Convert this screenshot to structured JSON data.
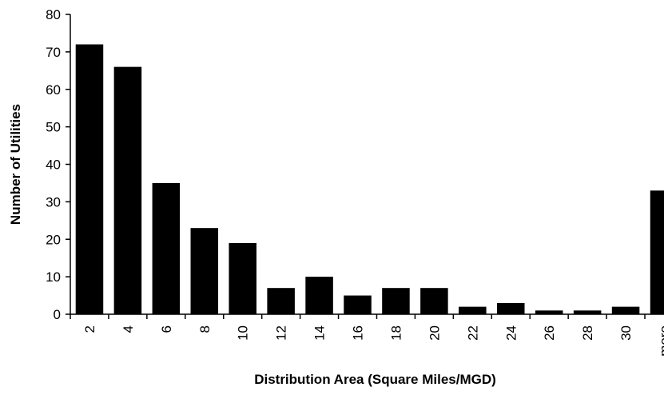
{
  "chart_data": {
    "type": "bar",
    "title": "",
    "xlabel": "Distribution Area (Square Miles/MGD)",
    "ylabel": "Number of Utilities",
    "categories": [
      "2",
      "4",
      "6",
      "8",
      "10",
      "12",
      "14",
      "16",
      "18",
      "20",
      "22",
      "24",
      "26",
      "28",
      "30",
      "more"
    ],
    "values": [
      72,
      66,
      35,
      23,
      19,
      7,
      10,
      5,
      7,
      7,
      2,
      3,
      1,
      1,
      2,
      33
    ],
    "ylim": [
      0,
      80
    ],
    "yticks": [
      0,
      10,
      20,
      30,
      40,
      50,
      60,
      70,
      80
    ],
    "grid": false,
    "legend": "none",
    "bar_color": "#000000"
  }
}
